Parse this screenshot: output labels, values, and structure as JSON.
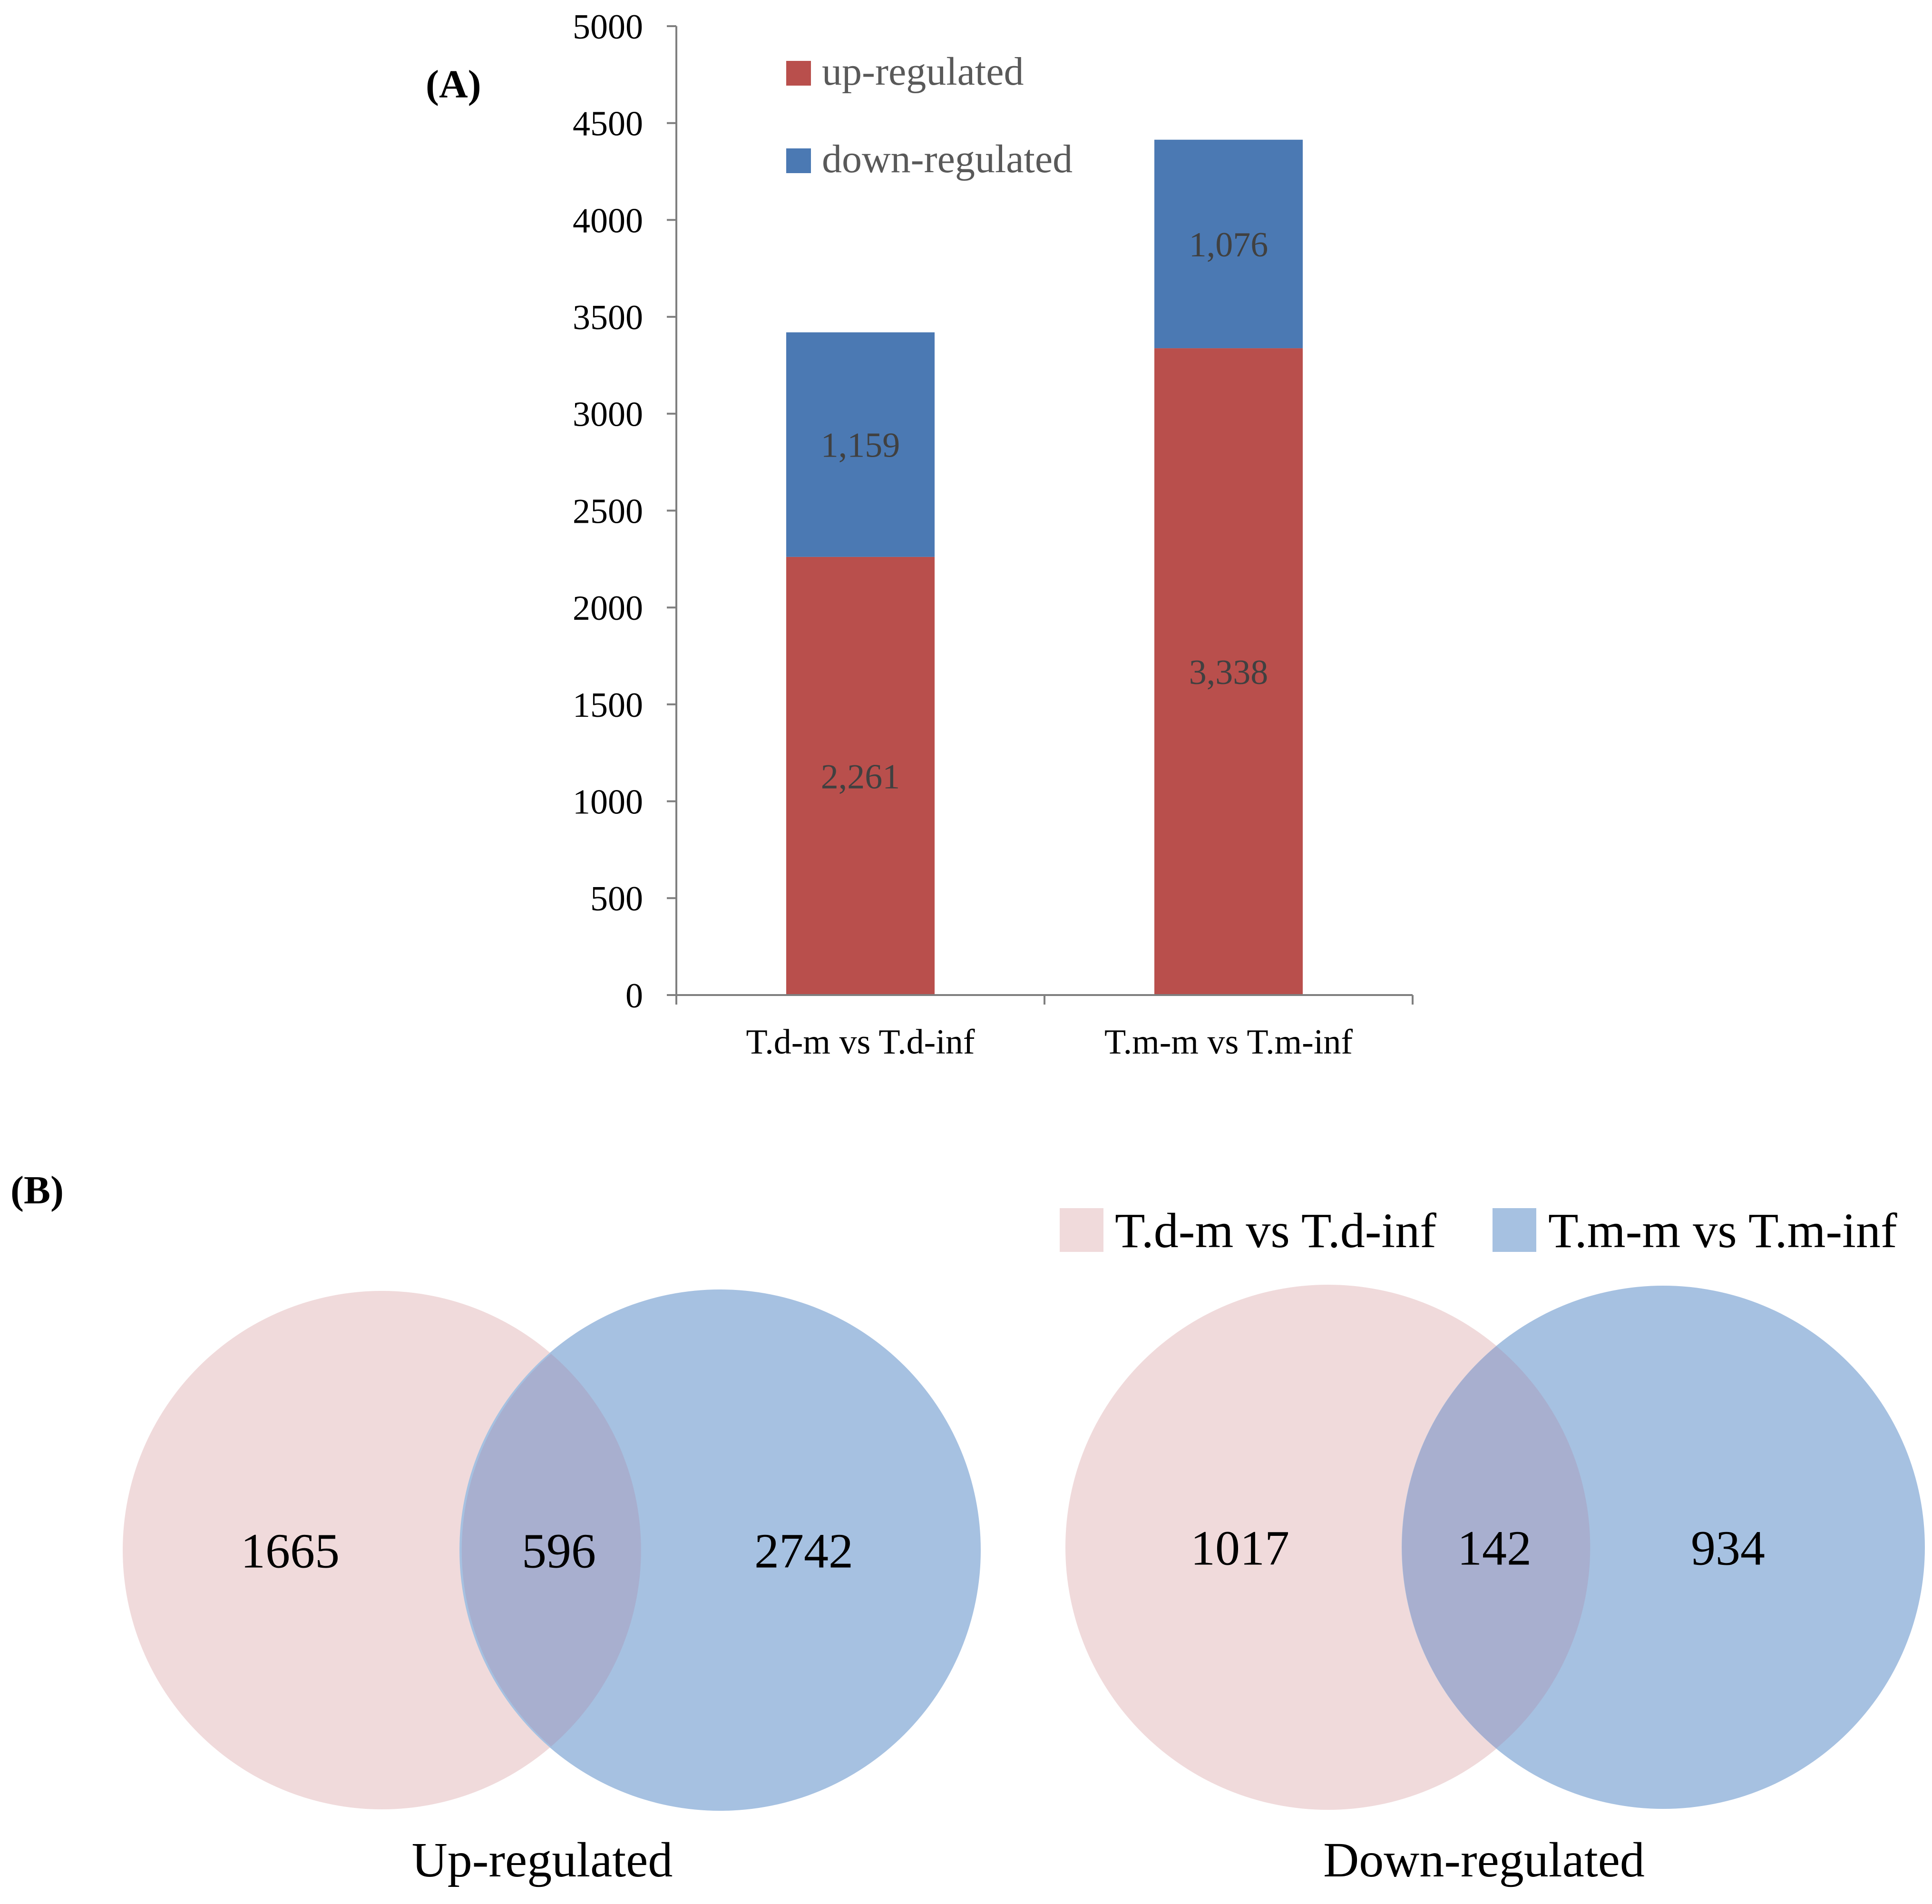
{
  "colors": {
    "up": "#B94F4C",
    "down": "#4B79B3",
    "venn_a": "#F0DADB",
    "venn_b": "#A6C1E1",
    "venn_overlap": "#A8AFCF",
    "axis": "#7F7F7F",
    "bar_label": "#404040"
  },
  "panels": {
    "a_label": "(A)",
    "b_label": "(B)"
  },
  "chart_data": {
    "type": "bar",
    "stacked": true,
    "title": "",
    "xlabel": "",
    "ylabel": "",
    "categories": [
      "T.d-m vs T.d-inf",
      "T.m-m vs T.m-inf"
    ],
    "series": [
      {
        "name": "up-regulated",
        "values": [
          2261,
          3338
        ],
        "labels": [
          "2,261",
          "3,338"
        ]
      },
      {
        "name": "down-regulated",
        "values": [
          1159,
          1076
        ],
        "labels": [
          "1,159",
          "1,076"
        ]
      }
    ],
    "ylim": [
      0,
      5000
    ],
    "yticks": [
      0,
      500,
      1000,
      1500,
      2000,
      2500,
      3000,
      3500,
      4000,
      4500,
      5000
    ],
    "legend_position": "top"
  },
  "venn": {
    "legend": [
      "T.d-m vs T.d-inf",
      "T.m-m vs T.m-inf"
    ],
    "diagrams": [
      {
        "title": "Up-regulated",
        "only_a": "1665",
        "overlap": "596",
        "only_b": "2742"
      },
      {
        "title": "Down-regulated",
        "only_a": "1017",
        "overlap": "142",
        "only_b": "934"
      }
    ]
  }
}
